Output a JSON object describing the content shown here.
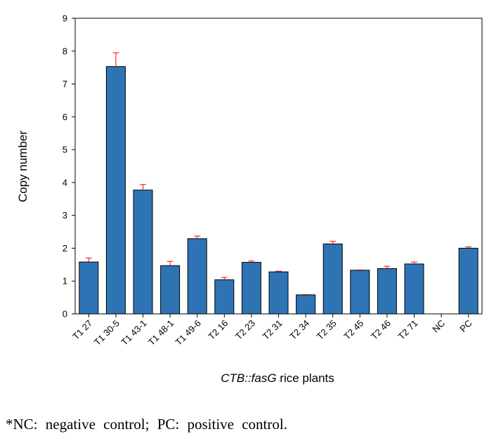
{
  "chart_data": {
    "type": "bar",
    "categories": [
      "T1 27",
      "T1 30-5",
      "T1 43-1",
      "T1 48-1",
      "T1 49-6",
      "T2 16",
      "T2 23",
      "T2 31",
      "T2 34",
      "T2 35",
      "T2 45",
      "T2 46",
      "T2 71",
      "NC",
      "PC"
    ],
    "series": [
      {
        "values": [
          1.58,
          7.53,
          3.77,
          1.47,
          2.29,
          1.04,
          1.57,
          1.28,
          0.58,
          2.13,
          1.33,
          1.38,
          1.52,
          0,
          2.0
        ],
        "errors": [
          0.12,
          0.42,
          0.17,
          0.13,
          0.08,
          0.07,
          0.04,
          0.02,
          0.01,
          0.08,
          0.01,
          0.07,
          0.06,
          0,
          0.04
        ]
      }
    ],
    "ylabel": "Copy number",
    "xlabel_italic": "CTB::fasG",
    "xlabel_rest": " rice plants",
    "ylim": [
      0,
      9
    ],
    "yticks": [
      "0",
      "1",
      "2",
      "3",
      "4",
      "5",
      "6",
      "7",
      "8",
      "9"
    ],
    "bar_color": "#2e74b5",
    "error_color": "#ff0000",
    "grid": false
  },
  "footnote": "*NC: negative control; PC: positive control."
}
